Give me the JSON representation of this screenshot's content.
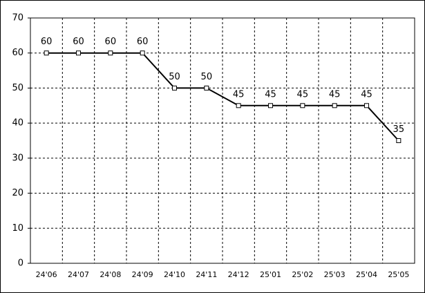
{
  "chart_data": {
    "type": "line",
    "categories": [
      "24'06",
      "24'07",
      "24'08",
      "24'09",
      "24'10",
      "24'11",
      "24'12",
      "25'01",
      "25'02",
      "25'03",
      "25'04",
      "25'05"
    ],
    "values": [
      60,
      60,
      60,
      60,
      50,
      50,
      45,
      45,
      45,
      45,
      45,
      35
    ],
    "color": "#000000",
    "ylim": [
      0,
      70
    ],
    "yticks": [
      0,
      10,
      20,
      30,
      40,
      50,
      60,
      70
    ],
    "grid": true,
    "data_labels": true
  }
}
